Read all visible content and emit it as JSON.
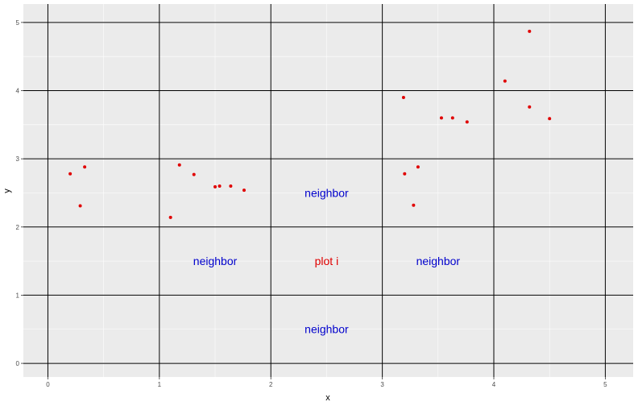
{
  "chart_data": {
    "type": "scatter",
    "xlabel": "x",
    "ylabel": "y",
    "xlim": [
      -0.22,
      5.25
    ],
    "ylim": [
      -0.2,
      5.27
    ],
    "x_ticks": [
      0,
      1,
      2,
      3,
      4,
      5
    ],
    "y_ticks": [
      0,
      1,
      2,
      3,
      4,
      5
    ],
    "x_tick_labels": [
      "0",
      "1",
      "2",
      "3",
      "4",
      "5"
    ],
    "y_tick_labels": [
      "0",
      "1",
      "2",
      "3",
      "4",
      "5"
    ],
    "grid": true,
    "panel_background": "#ebebeb",
    "gridline_color": "#ffffff",
    "cell_line_color": "#000000",
    "cell_lines": [
      0,
      1,
      2,
      3,
      4,
      5
    ],
    "point_color": "#e00000",
    "points": [
      {
        "x": 0.2,
        "y": 2.78
      },
      {
        "x": 0.33,
        "y": 2.88
      },
      {
        "x": 0.29,
        "y": 2.31
      },
      {
        "x": 1.1,
        "y": 2.14
      },
      {
        "x": 1.18,
        "y": 2.91
      },
      {
        "x": 1.31,
        "y": 2.77
      },
      {
        "x": 1.5,
        "y": 2.59
      },
      {
        "x": 1.54,
        "y": 2.6
      },
      {
        "x": 1.64,
        "y": 2.6
      },
      {
        "x": 1.76,
        "y": 2.54
      },
      {
        "x": 3.19,
        "y": 3.9
      },
      {
        "x": 3.2,
        "y": 2.78
      },
      {
        "x": 3.28,
        "y": 2.32
      },
      {
        "x": 3.32,
        "y": 2.88
      },
      {
        "x": 3.53,
        "y": 3.6
      },
      {
        "x": 3.63,
        "y": 3.6
      },
      {
        "x": 3.76,
        "y": 3.54
      },
      {
        "x": 4.1,
        "y": 4.14
      },
      {
        "x": 4.32,
        "y": 4.87
      },
      {
        "x": 4.32,
        "y": 3.76
      },
      {
        "x": 4.5,
        "y": 3.59
      }
    ],
    "annotations": [
      {
        "text": "neighbor",
        "x": 2.5,
        "y": 2.5,
        "color": "#0000cc"
      },
      {
        "text": "neighbor",
        "x": 1.5,
        "y": 1.5,
        "color": "#0000cc"
      },
      {
        "text": "plot i",
        "x": 2.5,
        "y": 1.5,
        "color": "#e00000"
      },
      {
        "text": "neighbor",
        "x": 3.5,
        "y": 1.5,
        "color": "#0000cc"
      },
      {
        "text": "neighbor",
        "x": 2.5,
        "y": 0.5,
        "color": "#0000cc"
      }
    ]
  }
}
